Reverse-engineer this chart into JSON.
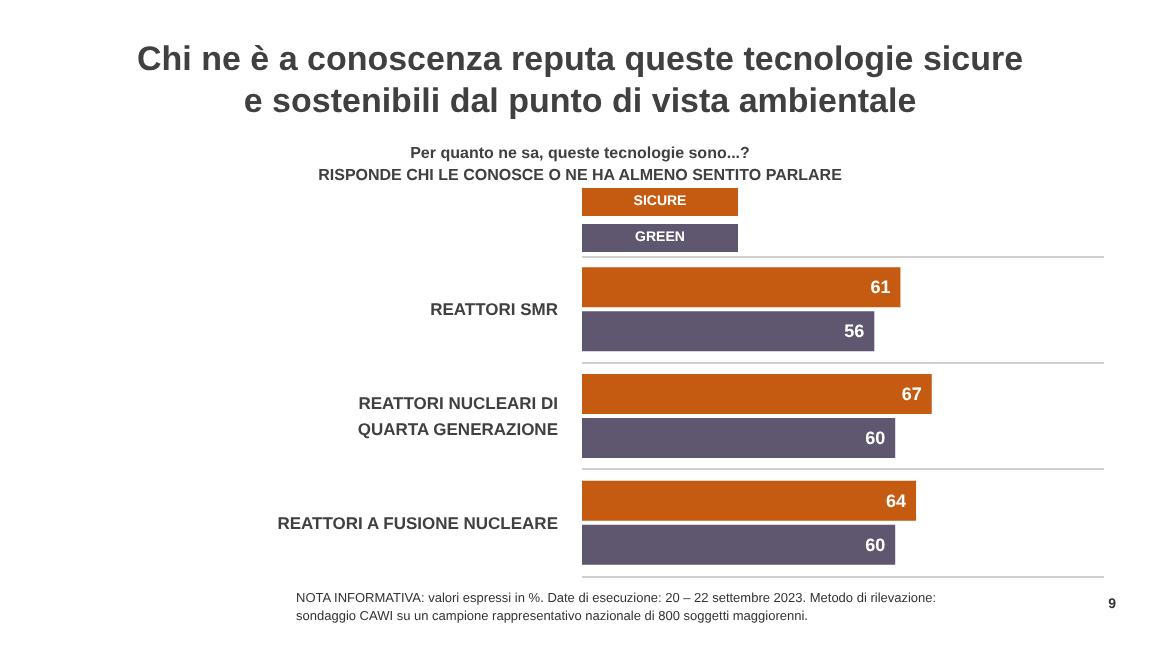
{
  "chart_data": {
    "type": "bar",
    "orientation": "horizontal",
    "title": "Chi ne è a conoscenza reputa queste tecnologie sicure\ne sostenibili dal punto di vista ambientale",
    "subtitle": "Per quanto ne sa, queste tecnologie sono...?\nRISPONDE CHI LE CONOSCE O NE HA ALMENO SENTITO PARLARE",
    "categories": [
      "REATTORI SMR",
      "REATTORI NUCLEARI DI\nQUARTA GENERAZIONE",
      "REATTORI A FUSIONE NUCLEARE"
    ],
    "series": [
      {
        "name": "SICURE",
        "color": "#c55a11",
        "values": [
          61,
          67,
          64
        ]
      },
      {
        "name": "GREEN",
        "color": "#5f5770",
        "values": [
          56,
          60,
          60
        ]
      }
    ],
    "xlim": [
      0,
      100
    ],
    "data_labels": true,
    "legend": "top",
    "grid": "y",
    "annotations": [
      "NOTA INFORMATIVA: valori espressi in %. Date di esecuzione: 20 – 22 settembre 2023. Metodo di rilevazione: sondaggio CAWI su un campione rappresentativo nazionale di 800 soggetti maggiorenni.",
      "9"
    ]
  }
}
